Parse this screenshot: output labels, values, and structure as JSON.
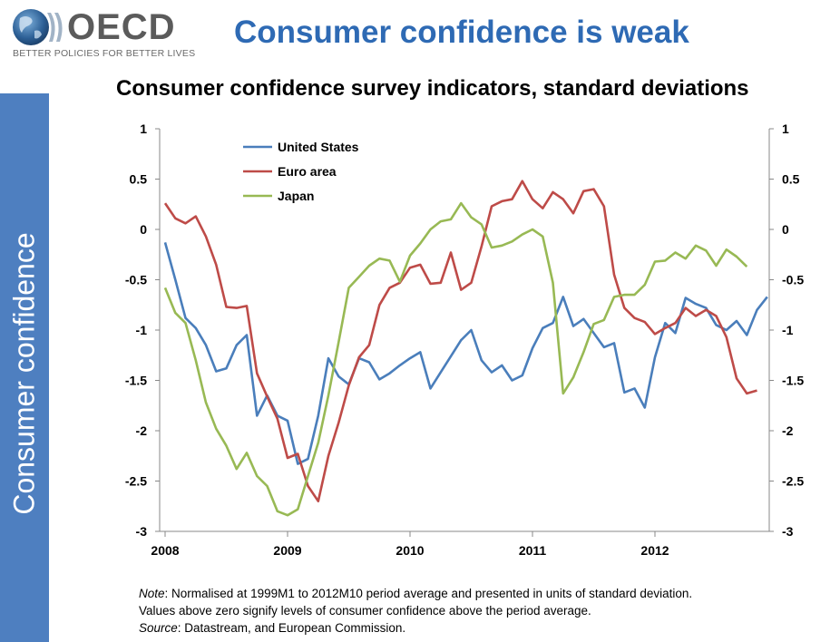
{
  "header": {
    "logo_word": "OECD",
    "logo_tagline": "BETTER POLICIES FOR BETTER LIVES",
    "headline": "Consumer confidence is weak"
  },
  "sidebar": {
    "label": "Consumer confidence"
  },
  "colors": {
    "us": "#4a7ebb",
    "euro": "#be4b48",
    "japan": "#98b954",
    "sidebar": "#4e7fc0",
    "headline": "#2e6ab4"
  },
  "chart_data": {
    "type": "line",
    "title": "Consumer confidence survey indicators, standard deviations",
    "xlabel": "",
    "ylabel": "",
    "x_start": "2008-01",
    "x_step": "month",
    "x_ticks": [
      "2008",
      "2009",
      "2010",
      "2011",
      "2012"
    ],
    "y_ticks": [
      "1",
      "0.5",
      "0",
      "-0.5",
      "-1",
      "-1.5",
      "-2",
      "-2.5",
      "-3"
    ],
    "y_ticks_right": [
      "1",
      "0.5",
      "0",
      "-0.5",
      "-1",
      "-1.5",
      "-2",
      "-2.5",
      "-3"
    ],
    "ylim": [
      -3,
      1
    ],
    "grid": false,
    "legend_position": "top-left",
    "series": [
      {
        "name": "United States",
        "values": [
          -0.13,
          -0.5,
          -0.88,
          -0.98,
          -1.15,
          -1.41,
          -1.38,
          -1.15,
          -1.05,
          -1.85,
          -1.65,
          -1.85,
          -1.9,
          -2.33,
          -2.28,
          -1.85,
          -1.28,
          -1.46,
          -1.54,
          -1.28,
          -1.32,
          -1.49,
          -1.43,
          -1.35,
          -1.28,
          -1.22,
          -1.58,
          -1.42,
          -1.26,
          -1.1,
          -1.0,
          -1.3,
          -1.42,
          -1.35,
          -1.5,
          -1.45,
          -1.18,
          -0.98,
          -0.93,
          -0.67,
          -0.96,
          -0.89,
          -1.03,
          -1.17,
          -1.13,
          -1.62,
          -1.58,
          -1.77,
          -1.27,
          -0.93,
          -1.03,
          -0.68,
          -0.74,
          -0.78,
          -0.95,
          -1.0,
          -0.91,
          -1.05,
          -0.8,
          -0.67
        ]
      },
      {
        "name": "Euro area",
        "values": [
          0.26,
          0.11,
          0.06,
          0.13,
          -0.07,
          -0.35,
          -0.77,
          -0.78,
          -0.76,
          -1.43,
          -1.66,
          -1.88,
          -2.27,
          -2.23,
          -2.55,
          -2.7,
          -2.25,
          -1.92,
          -1.55,
          -1.27,
          -1.15,
          -0.75,
          -0.58,
          -0.53,
          -0.38,
          -0.35,
          -0.54,
          -0.53,
          -0.23,
          -0.6,
          -0.53,
          -0.17,
          0.23,
          0.28,
          0.3,
          0.48,
          0.3,
          0.21,
          0.37,
          0.3,
          0.16,
          0.38,
          0.4,
          0.23,
          -0.45,
          -0.78,
          -0.88,
          -0.92,
          -1.04,
          -0.98,
          -0.93,
          -0.78,
          -0.86,
          -0.8,
          -0.86,
          -1.07,
          -1.48,
          -1.63,
          -1.6
        ]
      },
      {
        "name": "Japan",
        "values": [
          -0.58,
          -0.83,
          -0.93,
          -1.3,
          -1.72,
          -1.98,
          -2.15,
          -2.38,
          -2.22,
          -2.45,
          -2.55,
          -2.8,
          -2.84,
          -2.78,
          -2.45,
          -2.12,
          -1.65,
          -1.12,
          -0.58,
          -0.47,
          -0.36,
          -0.29,
          -0.31,
          -0.52,
          -0.26,
          -0.14,
          0.0,
          0.08,
          0.1,
          0.26,
          0.12,
          0.05,
          -0.18,
          -0.16,
          -0.12,
          -0.05,
          0.0,
          -0.07,
          -0.53,
          -1.63,
          -1.47,
          -1.22,
          -0.94,
          -0.9,
          -0.67,
          -0.65,
          -0.65,
          -0.55,
          -0.32,
          -0.31,
          -0.23,
          -0.29,
          -0.16,
          -0.21,
          -0.36,
          -0.2,
          -0.27,
          -0.37
        ]
      }
    ]
  }
}
